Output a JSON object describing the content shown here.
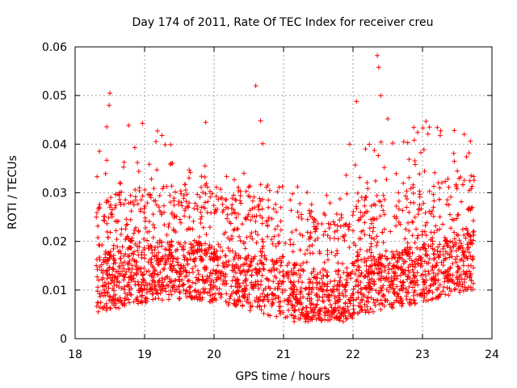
{
  "chart_data": {
    "type": "scatter",
    "title": "Day 174 of 2011, Rate Of TEC Index for receiver creu",
    "xlabel": "GPS time / hours",
    "ylabel": "ROTI / TECUs",
    "xlim": [
      18,
      24
    ],
    "ylim": [
      0,
      0.06
    ],
    "xticks": [
      18,
      19,
      20,
      21,
      22,
      23,
      24
    ],
    "xtick_labels": [
      "18",
      "19",
      "20",
      "21",
      "22",
      "23",
      "24"
    ],
    "yticks": [
      0,
      0.01,
      0.02,
      0.03,
      0.04,
      0.05,
      0.06
    ],
    "ytick_labels": [
      "0",
      "0.01",
      "0.02",
      "0.03",
      "0.04",
      "0.05",
      "0.06"
    ],
    "grid": true,
    "marker": "+",
    "series": [
      {
        "name": "ROTI",
        "color": "#ff0000",
        "x_range": [
          18.3,
          23.75
        ],
        "notable_points": [
          {
            "x": 18.5,
            "y": 0.0505
          },
          {
            "x": 18.49,
            "y": 0.048
          },
          {
            "x": 18.97,
            "y": 0.0443
          },
          {
            "x": 19.25,
            "y": 0.0418
          },
          {
            "x": 19.88,
            "y": 0.0445
          },
          {
            "x": 20.6,
            "y": 0.052
          },
          {
            "x": 20.67,
            "y": 0.0448
          },
          {
            "x": 20.7,
            "y": 0.0401
          },
          {
            "x": 22.05,
            "y": 0.0488
          },
          {
            "x": 22.18,
            "y": 0.039
          },
          {
            "x": 22.35,
            "y": 0.0582
          },
          {
            "x": 22.37,
            "y": 0.0558
          },
          {
            "x": 22.4,
            "y": 0.05
          },
          {
            "x": 22.5,
            "y": 0.0452
          },
          {
            "x": 22.73,
            "y": 0.0405
          },
          {
            "x": 23.05,
            "y": 0.0447
          },
          {
            "x": 23.1,
            "y": 0.0435
          },
          {
            "x": 23.45,
            "y": 0.0381
          },
          {
            "x": 23.7,
            "y": 0.0335
          }
        ],
        "typical_band": {
          "y_low": 0.005,
          "y_high": 0.02
        }
      }
    ]
  }
}
